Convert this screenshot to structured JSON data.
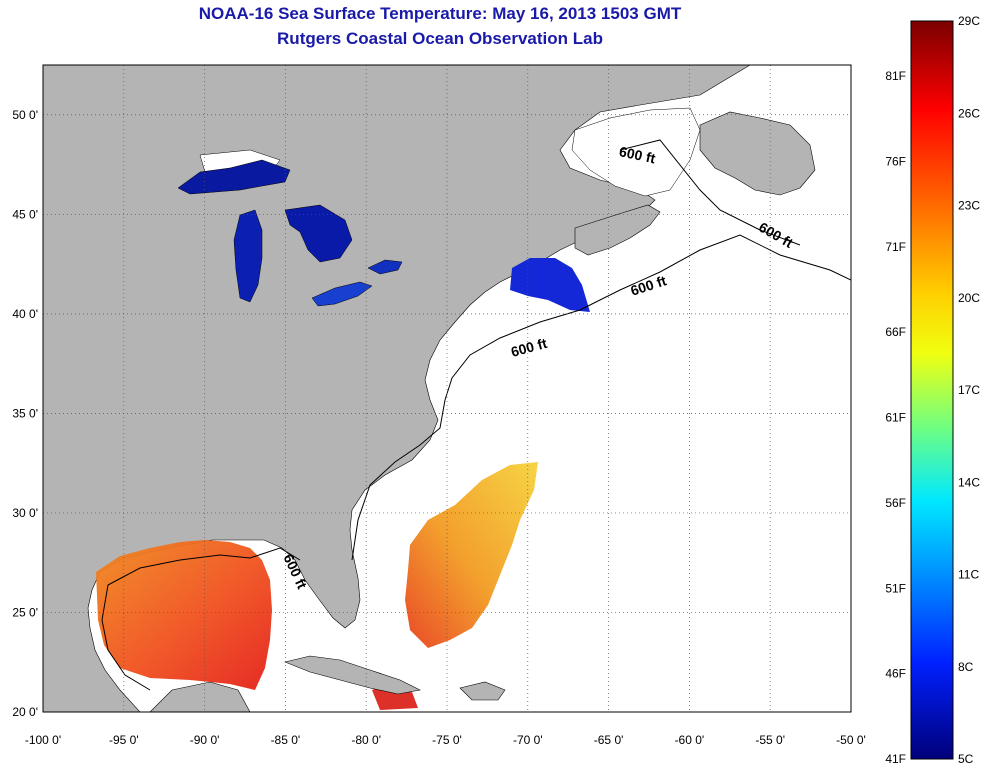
{
  "title": "NOAA-16 Sea Surface Temperature:  May 16, 2013 1503 GMT",
  "subtitle": "Rutgers Coastal Ocean Observation Lab",
  "map": {
    "lon_range": [
      -100,
      -50
    ],
    "lat_range": [
      20,
      52.5
    ],
    "lon_ticks": [
      "-100 0'",
      "-95 0'",
      "-90 0'",
      "-85 0'",
      "-80 0'",
      "-75 0'",
      "-70 0'",
      "-65 0'",
      "-60 0'",
      "-55 0'",
      "-50 0'"
    ],
    "lat_ticks": [
      "20 0'",
      "25 0'",
      "30 0'",
      "35 0'",
      "40 0'",
      "45 0'",
      "50 0'"
    ],
    "contour_labels": [
      "600 ft",
      "600 ft",
      "600 ft",
      "600 ft",
      "600 ft"
    ],
    "land_color": "#b4b4b4",
    "water_color": "#ffffff"
  },
  "colorbar": {
    "celsius_labels": [
      "29C",
      "26C",
      "23C",
      "20C",
      "17C",
      "14C",
      "11C",
      "8C",
      "5C"
    ],
    "fahrenheit_labels": [
      "81F",
      "76F",
      "71F",
      "66F",
      "61F",
      "56F",
      "51F",
      "46F",
      "41F"
    ],
    "colors": [
      "#800000",
      "#ff0000",
      "#ff8000",
      "#ffff00",
      "#80ff80",
      "#00ffff",
      "#0080ff",
      "#0000ff",
      "#000080"
    ]
  }
}
